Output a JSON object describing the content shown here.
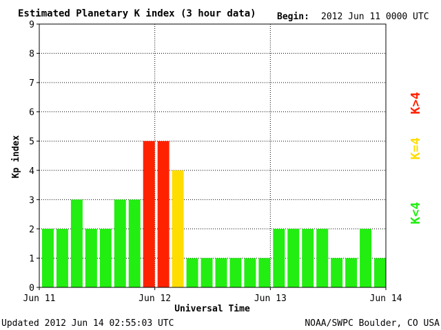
{
  "header": {
    "title": "Estimated Planetary K index (3 hour data)",
    "begin_label": "Begin:",
    "begin_value": "2012 Jun 11 0000 UTC"
  },
  "footer": {
    "updated": "Updated 2012 Jun 14 02:55:03 UTC",
    "source": "NOAA/SWPC Boulder, CO USA"
  },
  "legend": {
    "low": "K<4",
    "mid": "K=4",
    "high": "K>4"
  },
  "colors": {
    "low": "#22ee11",
    "mid": "#ffdd00",
    "high": "#ff2200"
  },
  "chart_data": {
    "type": "bar",
    "title": "Estimated Planetary K index (3 hour data)",
    "xlabel": "Universal Time",
    "ylabel": "Kp index",
    "ylim": [
      0,
      9
    ],
    "yticks": [
      0,
      1,
      2,
      3,
      4,
      5,
      6,
      7,
      8,
      9
    ],
    "xticks": [
      "Jun 11",
      "Jun 12",
      "Jun 13",
      "Jun 14"
    ],
    "bars_per_day": 8,
    "values": [
      2,
      2,
      3,
      2,
      2,
      3,
      3,
      5,
      5,
      4,
      1,
      1,
      1,
      1,
      1,
      1,
      2,
      2,
      2,
      2,
      1,
      1,
      2,
      1
    ],
    "grid": true
  }
}
